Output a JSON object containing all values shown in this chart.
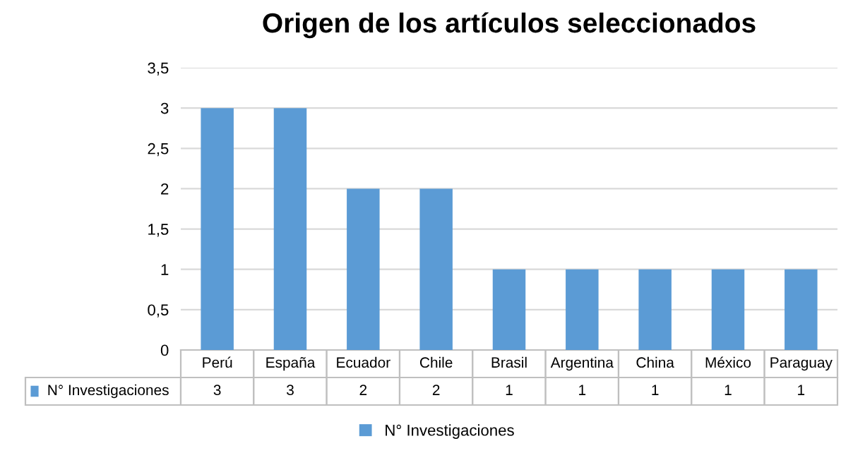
{
  "chart_data": {
    "type": "bar",
    "title": "Origen de los artículos seleccionados",
    "categories": [
      "Perú",
      "España",
      "Ecuador",
      "Chile",
      "Brasil",
      "Argentina",
      "China",
      "México",
      "Paraguay"
    ],
    "series": [
      {
        "name": "N° Investigaciones",
        "color": "#5b9bd5",
        "values": [
          3,
          3,
          2,
          2,
          1,
          1,
          1,
          1,
          1
        ]
      }
    ],
    "ylim": [
      0,
      3.5
    ],
    "yticks": [
      0,
      {
        "value": 0.5,
        "label": "0,5"
      },
      1,
      {
        "value": 1.5,
        "label": "1,5"
      },
      2,
      {
        "value": 2.5,
        "label": "2,5"
      },
      3,
      {
        "value": 3.5,
        "label": "3,5"
      }
    ],
    "grid": "y",
    "legend": "bottom",
    "data_labels": true
  }
}
